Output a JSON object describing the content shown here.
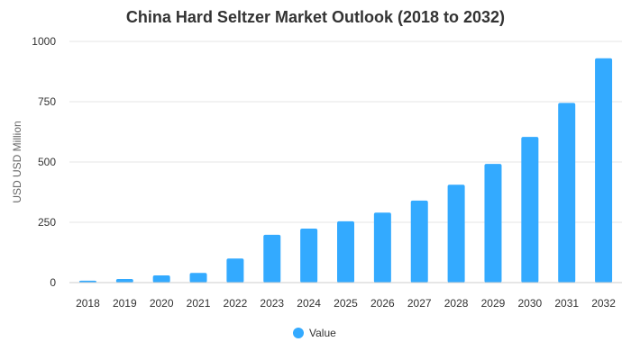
{
  "chart_data": {
    "type": "bar",
    "title": "China Hard Seltzer Market Outlook (2018 to 2032)",
    "xlabel": "",
    "ylabel": "USD USD Million",
    "categories": [
      "2018",
      "2019",
      "2020",
      "2021",
      "2022",
      "2023",
      "2024",
      "2025",
      "2026",
      "2027",
      "2028",
      "2029",
      "2030",
      "2031",
      "2032"
    ],
    "series": [
      {
        "name": "Value",
        "color": "#33aaff",
        "values": [
          8,
          15,
          30,
          40,
          100,
          198,
          224,
          254,
          290,
          340,
          406,
          492,
          604,
          745,
          930
        ]
      }
    ],
    "ylim": [
      0,
      1000
    ],
    "yticks": [
      0,
      250,
      500,
      750,
      1000
    ],
    "grid": true,
    "legend": "bottom"
  }
}
